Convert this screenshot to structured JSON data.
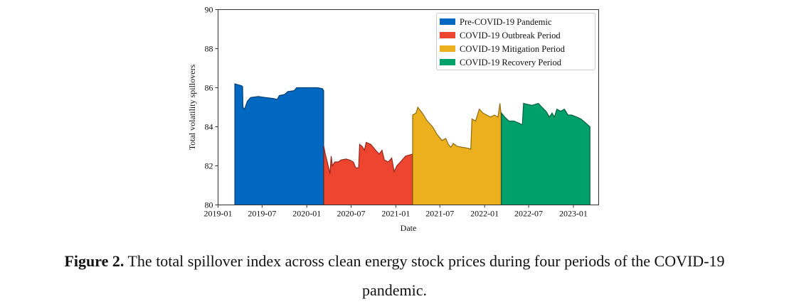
{
  "chart_data": {
    "type": "area",
    "title": "",
    "xlabel": "Date",
    "ylabel": "Total volatility spillovers",
    "xlim": [
      "2019-01-01",
      "2023-04-15"
    ],
    "ylim": [
      80,
      90
    ],
    "yticks": [
      80,
      82,
      84,
      86,
      88,
      90
    ],
    "xticks": [
      "2019-01",
      "2019-07",
      "2020-01",
      "2020-07",
      "2021-01",
      "2021-07",
      "2022-01",
      "2022-07",
      "2023-01"
    ],
    "grid": false,
    "legend_position": "top-right",
    "series": [
      {
        "name": "Pre-COVID-19 Pandemic",
        "color": "#0068c0",
        "points": [
          [
            "2019-03-11",
            86.2
          ],
          [
            "2019-03-25",
            86.15
          ],
          [
            "2019-04-08",
            86.1
          ],
          [
            "2019-04-12",
            86.05
          ],
          [
            "2019-04-13",
            85.0
          ],
          [
            "2019-04-20",
            84.9
          ],
          [
            "2019-05-01",
            85.3
          ],
          [
            "2019-05-15",
            85.5
          ],
          [
            "2019-06-15",
            85.55
          ],
          [
            "2019-07-15",
            85.5
          ],
          [
            "2019-08-15",
            85.45
          ],
          [
            "2019-09-01",
            85.4
          ],
          [
            "2019-09-10",
            85.6
          ],
          [
            "2019-10-01",
            85.65
          ],
          [
            "2019-10-15",
            85.8
          ],
          [
            "2019-11-10",
            85.85
          ],
          [
            "2019-11-20",
            86.0
          ],
          [
            "2019-12-15",
            86.0
          ],
          [
            "2020-01-15",
            86.0
          ],
          [
            "2020-02-15",
            86.0
          ],
          [
            "2020-03-05",
            85.95
          ],
          [
            "2020-03-10",
            85.85
          ]
        ]
      },
      {
        "name": "COVID-19 Outbreak Period",
        "color": "#ee4530",
        "points": [
          [
            "2020-03-11",
            83.0
          ],
          [
            "2020-03-15",
            82.7
          ],
          [
            "2020-03-25",
            82.2
          ],
          [
            "2020-04-05",
            81.6
          ],
          [
            "2020-04-10",
            82.5
          ],
          [
            "2020-04-15",
            82.0
          ],
          [
            "2020-04-25",
            82.2
          ],
          [
            "2020-05-10",
            82.2
          ],
          [
            "2020-05-20",
            82.3
          ],
          [
            "2020-06-10",
            82.35
          ],
          [
            "2020-06-25",
            82.3
          ],
          [
            "2020-07-10",
            82.2
          ],
          [
            "2020-07-20",
            81.9
          ],
          [
            "2020-08-01",
            81.9
          ],
          [
            "2020-08-05",
            83.1
          ],
          [
            "2020-08-15",
            83.0
          ],
          [
            "2020-08-25",
            82.8
          ],
          [
            "2020-09-01",
            83.2
          ],
          [
            "2020-09-20",
            83.1
          ],
          [
            "2020-10-10",
            82.8
          ],
          [
            "2020-10-25",
            82.6
          ],
          [
            "2020-11-05",
            82.8
          ],
          [
            "2020-11-15",
            82.3
          ],
          [
            "2020-12-01",
            82.2
          ],
          [
            "2020-12-15",
            82.4
          ],
          [
            "2020-12-25",
            81.7
          ],
          [
            "2021-01-05",
            82.0
          ],
          [
            "2021-01-20",
            82.2
          ],
          [
            "2021-02-10",
            82.5
          ],
          [
            "2021-03-10",
            82.6
          ]
        ]
      },
      {
        "name": "COVID-19 Mitigation Period",
        "color": "#ecb01f",
        "points": [
          [
            "2021-03-11",
            84.6
          ],
          [
            "2021-03-25",
            84.7
          ],
          [
            "2021-04-01",
            85.0
          ],
          [
            "2021-04-20",
            84.7
          ],
          [
            "2021-05-10",
            84.3
          ],
          [
            "2021-06-01",
            84.0
          ],
          [
            "2021-06-20",
            83.6
          ],
          [
            "2021-07-10",
            83.3
          ],
          [
            "2021-07-25",
            83.4
          ],
          [
            "2021-08-05",
            83.1
          ],
          [
            "2021-08-15",
            82.95
          ],
          [
            "2021-08-25",
            83.15
          ],
          [
            "2021-09-10",
            83.0
          ],
          [
            "2021-10-01",
            82.95
          ],
          [
            "2021-10-25",
            82.9
          ],
          [
            "2021-11-05",
            82.85
          ],
          [
            "2021-11-10",
            84.4
          ],
          [
            "2021-11-25",
            84.3
          ],
          [
            "2021-12-10",
            84.9
          ],
          [
            "2021-12-25",
            84.7
          ],
          [
            "2022-01-10",
            84.6
          ],
          [
            "2022-01-25",
            84.5
          ],
          [
            "2022-02-10",
            84.6
          ],
          [
            "2022-02-25",
            84.5
          ],
          [
            "2022-03-05",
            85.2
          ],
          [
            "2022-03-10",
            84.6
          ]
        ]
      },
      {
        "name": "COVID-19 Recovery Period",
        "color": "#00a06a",
        "points": [
          [
            "2022-03-11",
            84.7
          ],
          [
            "2022-03-25",
            84.5
          ],
          [
            "2022-04-10",
            84.3
          ],
          [
            "2022-05-01",
            84.3
          ],
          [
            "2022-05-20",
            84.2
          ],
          [
            "2022-06-05",
            84.1
          ],
          [
            "2022-06-10",
            85.2
          ],
          [
            "2022-06-25",
            85.15
          ],
          [
            "2022-07-15",
            85.1
          ],
          [
            "2022-08-10",
            85.2
          ],
          [
            "2022-08-25",
            85.0
          ],
          [
            "2022-09-10",
            84.8
          ],
          [
            "2022-09-25",
            84.5
          ],
          [
            "2022-10-05",
            84.7
          ],
          [
            "2022-10-15",
            84.5
          ],
          [
            "2022-10-25",
            84.9
          ],
          [
            "2022-11-10",
            84.8
          ],
          [
            "2022-11-25",
            84.9
          ],
          [
            "2022-12-10",
            84.6
          ],
          [
            "2022-12-25",
            84.6
          ],
          [
            "2023-01-15",
            84.5
          ],
          [
            "2023-02-01",
            84.4
          ],
          [
            "2023-02-20",
            84.2
          ],
          [
            "2023-03-10",
            84.0
          ]
        ]
      }
    ]
  },
  "caption": {
    "label": "Figure 2.",
    "text_line1": " The total spillover index across clean energy stock prices during four periods of the COVID-19",
    "text_line2": "pandemic."
  }
}
